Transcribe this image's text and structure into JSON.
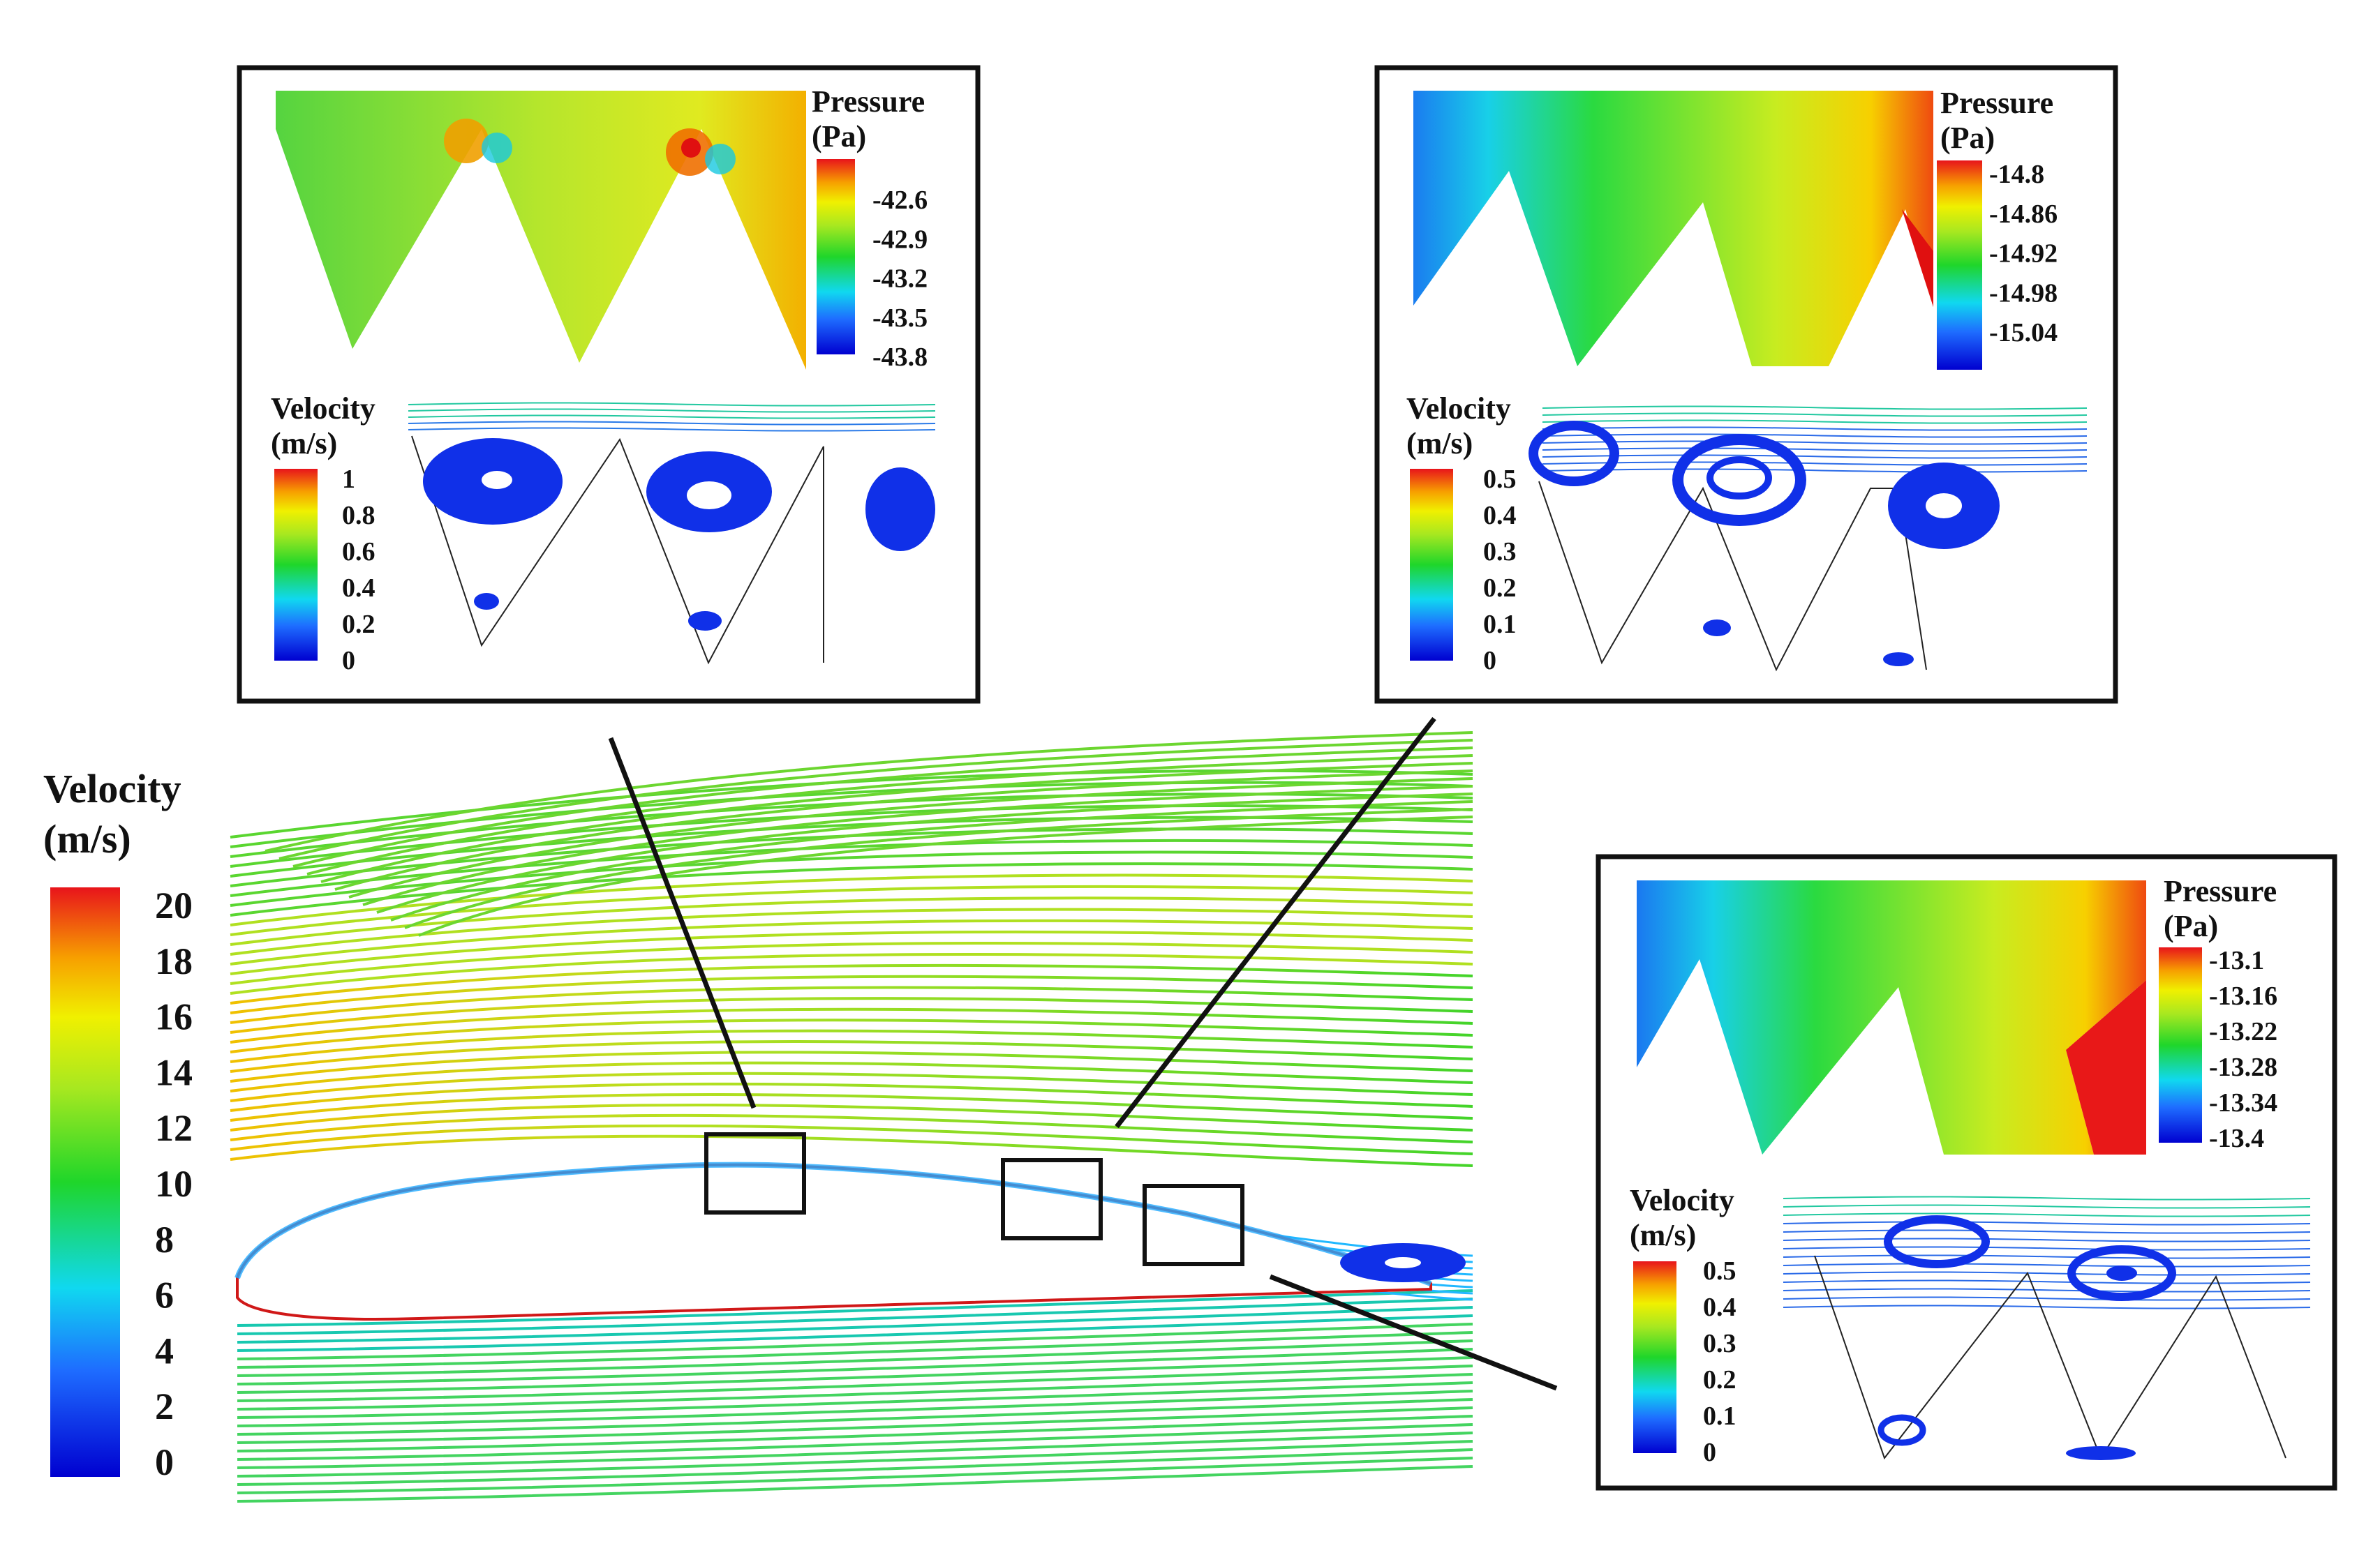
{
  "main_legend": {
    "title": "Velocity",
    "unit": "(m/s)",
    "ticks": [
      "20",
      "18",
      "16",
      "14",
      "12",
      "10",
      "8",
      "6",
      "4",
      "2",
      "0"
    ]
  },
  "insets": [
    {
      "pressure": {
        "title": "Pressure",
        "unit": "(Pa)",
        "ticks": [
          "-42.6",
          "-42.9",
          "-43.2",
          "-43.5",
          "-43.8"
        ]
      },
      "velocity": {
        "title": "Velocity",
        "unit": "(m/s)",
        "ticks": [
          "1",
          "0.8",
          "0.6",
          "0.4",
          "0.2",
          "0"
        ]
      }
    },
    {
      "pressure": {
        "title": "Pressure",
        "unit": "(Pa)",
        "ticks": [
          "-14.8",
          "-14.86",
          "-14.92",
          "-14.98",
          "-15.04"
        ]
      },
      "velocity": {
        "title": "Velocity",
        "unit": "(m/s)",
        "ticks": [
          "0.5",
          "0.4",
          "0.3",
          "0.2",
          "0.1",
          "0"
        ]
      }
    },
    {
      "pressure": {
        "title": "Pressure",
        "unit": "(Pa)",
        "ticks": [
          "-13.1",
          "-13.16",
          "-13.22",
          "-13.28",
          "-13.34",
          "-13.4"
        ]
      },
      "velocity": {
        "title": "Velocity",
        "unit": "(m/s)",
        "ticks": [
          "0.5",
          "0.4",
          "0.3",
          "0.2",
          "0.1",
          "0"
        ]
      }
    }
  ],
  "colors": {
    "red": "#e8141b",
    "orange": "#f5a300",
    "yellow": "#eef000",
    "green": "#1fd62a",
    "cyan": "#14d6e6",
    "blue": "#1155ee",
    "darkblue": "#0000d0"
  }
}
